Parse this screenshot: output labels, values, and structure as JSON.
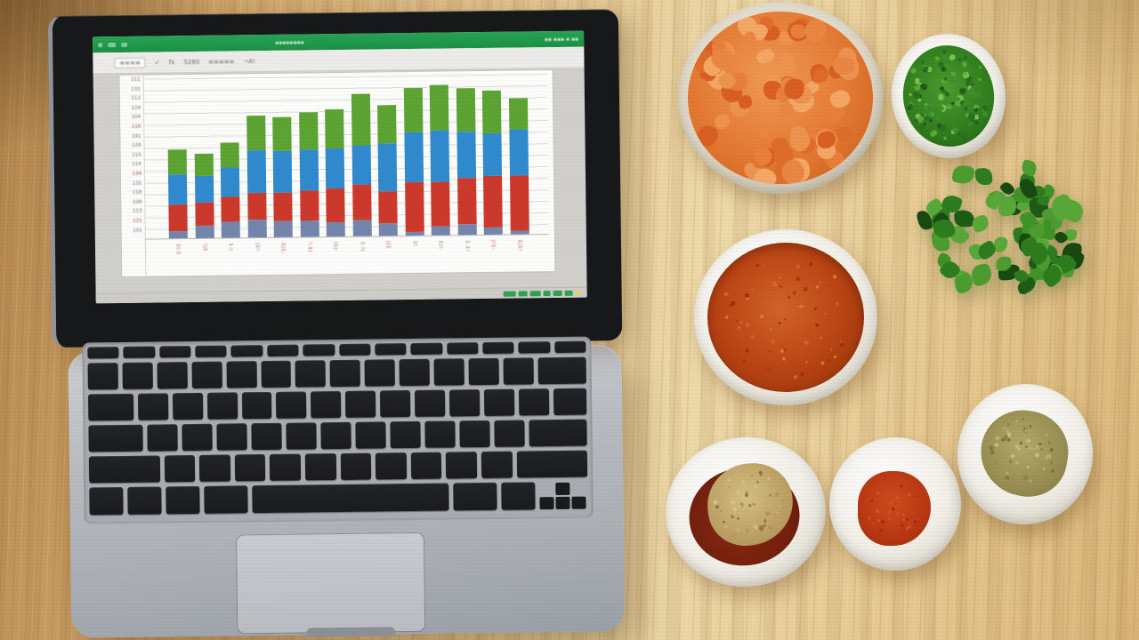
{
  "scene": {
    "description": "Overhead photo: open laptop showing a green-themed spreadsheet app with a stacked column chart, on a light wooden table beside bowls of diced carrots, chopped herbs, fresh cilantro and ground spices",
    "table_wood_color": "#e3c48e",
    "note": "All on-screen text is photographed at low resolution and is illegible; glyph tokens below approximate the smudged marks."
  },
  "app": {
    "titlebar": {
      "color": "#1f9e4d",
      "title": "▪▪▪▪▪▪▪▪",
      "right_text": "▪▪ ▪▪▪ ▪ ▪▪"
    },
    "toolbar": {
      "items": [
        "≡≡≡≡",
        "✓",
        "fx",
        "5280",
        "≡≡≡≡≡",
        "¬A!"
      ]
    },
    "statusbar": {
      "tab_color": "#2fa24e",
      "tab_widths": [
        14,
        10,
        12,
        8,
        10,
        9
      ],
      "accent_dot_color": "#e8d44d"
    }
  },
  "chart_data": {
    "type": "bar",
    "stacked": true,
    "title": "",
    "xlabel": "",
    "ylabel": "",
    "grid": true,
    "legend": "none",
    "ylim": [
      0,
      185
    ],
    "categories": [
      "1|:1",
      "!|1",
      "1:|",
      "|1!:",
      "1|1:",
      "!:1|",
      "|1|:",
      "1:!|",
      "||1",
      "1!",
      "1|!:",
      "1:1!",
      "|!1:",
      "1|1!"
    ],
    "categories_note": "x tick labels are vertical smudged strings, alternating dark red and gray",
    "y_ticks": [
      "111",
      "131",
      "112",
      "124",
      "104",
      "116",
      "141",
      "126",
      "115",
      "114",
      "134",
      "125",
      "118",
      "108",
      "113",
      "121",
      "101"
    ],
    "series": [
      {
        "name": "bottom-slate-segment",
        "color": "#7586ac",
        "values": [
          8,
          14,
          18,
          20,
          18,
          18,
          16,
          18,
          14,
          4,
          10,
          12,
          8,
          4
        ]
      },
      {
        "name": "red-segment",
        "color": "#cd3a2c",
        "values": [
          30,
          26,
          28,
          30,
          32,
          34,
          38,
          40,
          36,
          56,
          50,
          52,
          58,
          62
        ]
      },
      {
        "name": "blue-segment",
        "color": "#2f8bcd",
        "values": [
          34,
          30,
          33,
          48,
          47,
          46,
          45,
          44,
          54,
          56,
          58,
          52,
          48,
          52
        ]
      },
      {
        "name": "green-segment",
        "color": "#5ca433",
        "values": [
          28,
          25,
          28,
          39,
          38,
          42,
          44,
          58,
          43,
          50,
          51,
          49,
          48,
          35
        ]
      }
    ]
  },
  "keyboard": {
    "rows": [
      {
        "h": 13,
        "keys": [
          1,
          1,
          1,
          1,
          1,
          1,
          1,
          1,
          1,
          1,
          1,
          1,
          1,
          1
        ]
      },
      {
        "h": 30,
        "keys": [
          1,
          1,
          1,
          1,
          1,
          1,
          1,
          1,
          1,
          1,
          1,
          1,
          1,
          1.6
        ]
      },
      {
        "h": 30,
        "keys": [
          1.5,
          1,
          1,
          1,
          1,
          1,
          1,
          1,
          1,
          1,
          1,
          1,
          1,
          1.1
        ]
      },
      {
        "h": 30,
        "keys": [
          1.8,
          1,
          1,
          1,
          1,
          1,
          1,
          1,
          1,
          1,
          1,
          1,
          1.9
        ]
      },
      {
        "h": 30,
        "keys": [
          2.3,
          1,
          1,
          1,
          1,
          1,
          1,
          1,
          1,
          1,
          1,
          2.3
        ]
      },
      {
        "h": 31,
        "keys": [
          1,
          1,
          1,
          1.3,
          5.8,
          1.3,
          1
        ],
        "arrows": true
      }
    ]
  },
  "bowls": {
    "carrots": {
      "label": "diced carrots",
      "palette": [
        "#e87f3a",
        "#ef9350",
        "#df6d2a",
        "#f5a766",
        "#d95f22",
        "#ea8743"
      ],
      "count": 72
    },
    "herbs": {
      "label": "chopped green herbs",
      "palette": [
        "#2c6e1e",
        "#3f8f2a",
        "#57ab36",
        "#7cc24f",
        "#235c17"
      ],
      "count": 110
    },
    "cilantro": {
      "label": "fresh cilantro bunch",
      "palette": [
        "#1e5c15",
        "#2e7c1f",
        "#3f9428",
        "#57a838",
        "#174a10",
        "#4c9c30"
      ],
      "count": 70
    },
    "paprika": {
      "label": "bowl of ground paprika",
      "palette": [
        "#d4622a",
        "#9c3309",
        "#e07a3a",
        "#aa3c10"
      ],
      "count": 60
    },
    "cumin": {
      "label": "cumin over chili powder",
      "palette": [
        "#d8c189",
        "#b39755",
        "#8d7a40",
        "#c9b274"
      ],
      "count": 55
    },
    "chili": {
      "label": "red chili powder",
      "palette": [
        "#d95426",
        "#a52c0d",
        "#c64419"
      ],
      "count": 36
    },
    "oregano": {
      "label": "dried oregano",
      "palette": [
        "#b7ae6f",
        "#8d8448",
        "#c5bd85",
        "#7e7640"
      ],
      "count": 50
    }
  }
}
